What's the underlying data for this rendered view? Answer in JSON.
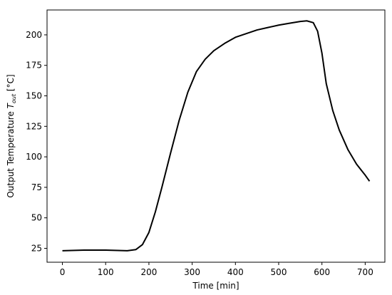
{
  "chart_data": {
    "type": "line",
    "xlabel": "Time [min]",
    "ylabel": "Output Temperature ",
    "ylabel_symbol": "T",
    "ylabel_subscript": "out",
    "ylabel_unit": " [°C]",
    "x": [
      0,
      50,
      100,
      150,
      170,
      185,
      200,
      215,
      230,
      250,
      270,
      290,
      310,
      330,
      350,
      375,
      400,
      425,
      450,
      475,
      500,
      525,
      550,
      565,
      580,
      590,
      600,
      610,
      625,
      640,
      660,
      680,
      700,
      710
    ],
    "series": [
      {
        "color": "#000000",
        "values": [
          23,
          23.5,
          23.5,
          23,
          24,
          28,
          38,
          55,
          75,
          103,
          130,
          153,
          170,
          180,
          187,
          193,
          198,
          201,
          204,
          206,
          208,
          209.5,
          211,
          211.5,
          210,
          203,
          185,
          160,
          138,
          122,
          106,
          94,
          85,
          80
        ]
      }
    ],
    "xlim": [
      -35.5,
      745.5
    ],
    "xticks": [
      0,
      100,
      200,
      300,
      400,
      500,
      600,
      700
    ],
    "ylim": [
      13.6,
      220.4
    ],
    "yticks": [
      25,
      50,
      75,
      100,
      125,
      150,
      175,
      200
    ],
    "grid": false
  }
}
